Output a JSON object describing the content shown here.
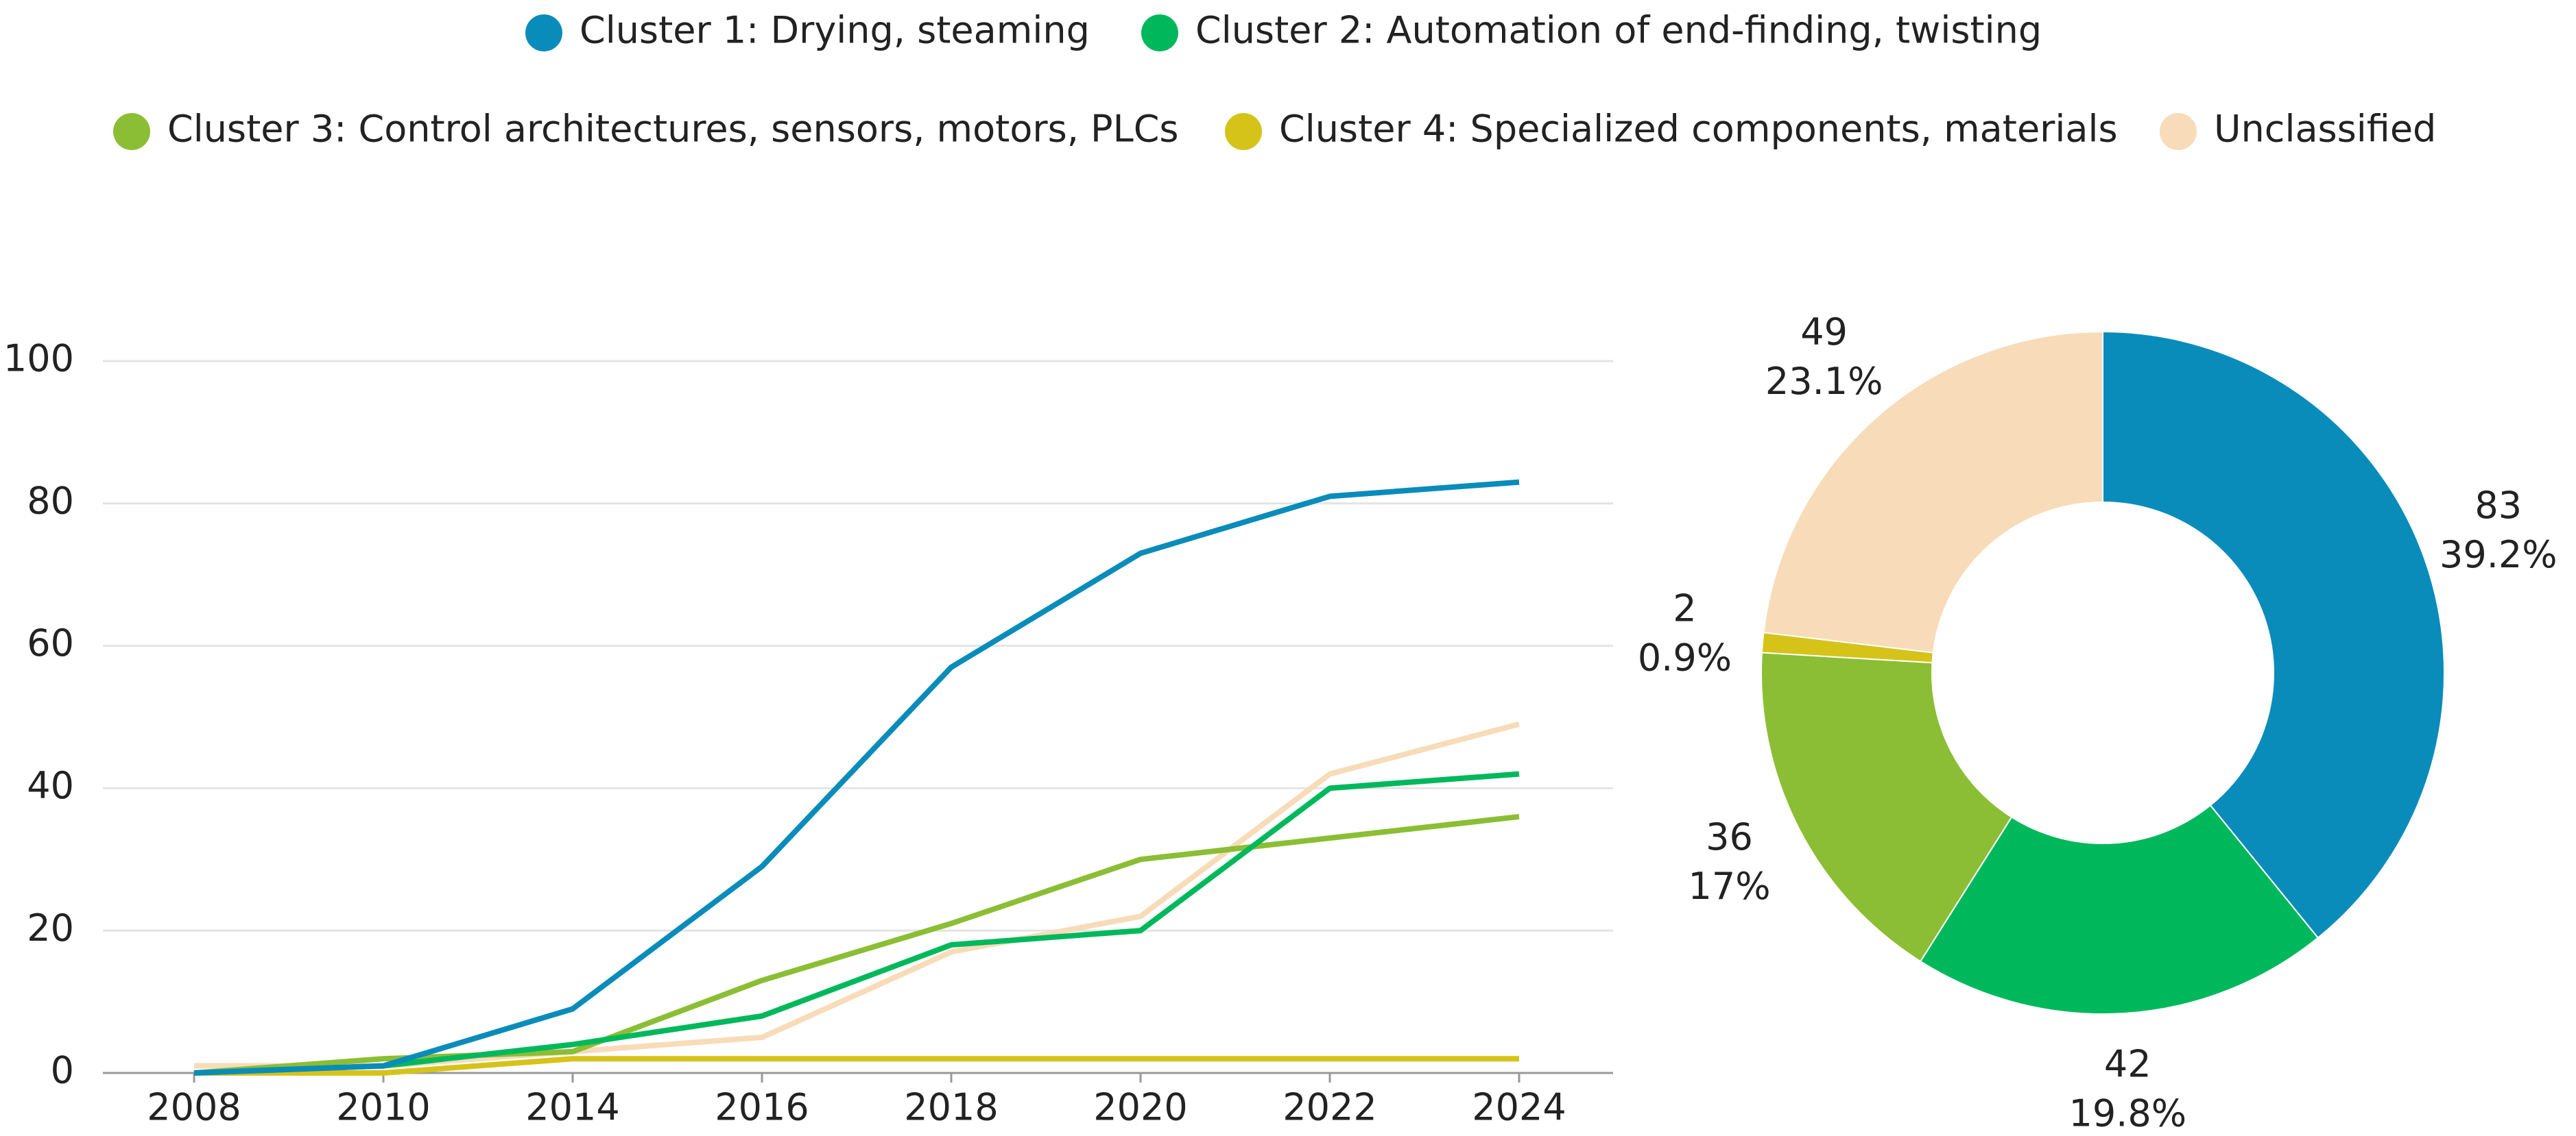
{
  "chart_data": [
    {
      "type": "line",
      "categories": [
        "2008",
        "2010",
        "2014",
        "2016",
        "2018",
        "2020",
        "2022",
        "2024"
      ],
      "series": [
        {
          "name": "Cluster 1: Drying, steaming",
          "color": "#0a8cba",
          "values": [
            0,
            1,
            9,
            29,
            57,
            73,
            81,
            83
          ]
        },
        {
          "name": "Cluster 2: Automation of end-finding, twisting",
          "color": "#00b85c",
          "values": [
            0,
            1,
            4,
            8,
            18,
            20,
            40,
            42
          ]
        },
        {
          "name": "Cluster 3: Control architectures, sensors, motors, PLCs",
          "color": "#8bbe34",
          "values": [
            0,
            2,
            3,
            13,
            21,
            30,
            33,
            36
          ]
        },
        {
          "name": "Cluster 4: Specialized components, materials",
          "color": "#d6c31a",
          "values": [
            0,
            0,
            2,
            2,
            2,
            2,
            2,
            2
          ]
        },
        {
          "name": "Unclassified",
          "color": "#f8dbb8",
          "values": [
            1,
            1,
            3,
            5,
            17,
            22,
            42,
            49
          ]
        }
      ],
      "ylim": [
        0,
        100
      ],
      "yticks": [
        0,
        20,
        40,
        60,
        80,
        100
      ],
      "grid": true
    },
    {
      "type": "donut",
      "values": [
        83,
        42,
        36,
        2,
        49
      ],
      "percent_labels": [
        "39.2%",
        "19.8%",
        "17%",
        "0.9%",
        "23.1%"
      ],
      "colors": [
        "#0a8cba",
        "#00b85c",
        "#8bbe34",
        "#d6c31a",
        "#f8dbb8"
      ]
    }
  ]
}
